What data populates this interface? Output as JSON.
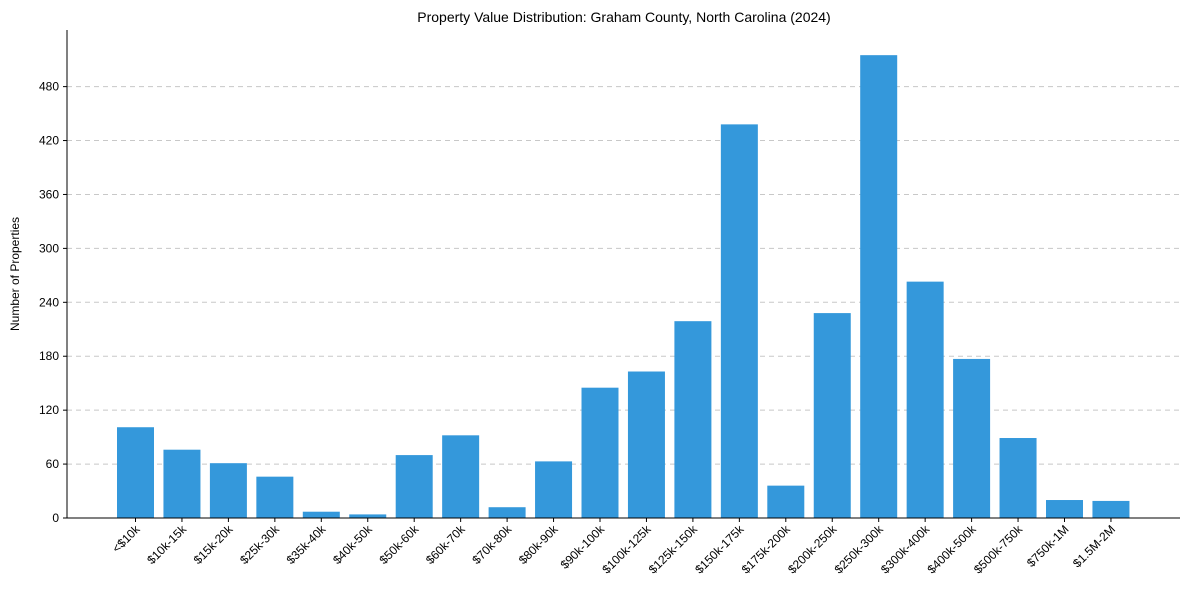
{
  "chart_data": {
    "type": "bar",
    "title": "Property Value Distribution: Graham County, North Carolina (2024)",
    "xlabel": "",
    "ylabel": "Number of Properties",
    "categories": [
      "<$10k",
      "$10k-15k",
      "$15k-20k",
      "$25k-30k",
      "$35k-40k",
      "$40k-50k",
      "$50k-60k",
      "$60k-70k",
      "$70k-80k",
      "$80k-90k",
      "$90k-100k",
      "$100k-125k",
      "$125k-150k",
      "$150k-175k",
      "$175k-200k",
      "$200k-250k",
      "$250k-300k",
      "$300k-400k",
      "$400k-500k",
      "$500k-750k",
      "$750k-1M",
      "$1.5M-2M"
    ],
    "values": [
      101,
      76,
      61,
      46,
      7,
      4,
      70,
      92,
      12,
      63,
      145,
      163,
      219,
      438,
      36,
      228,
      515,
      263,
      177,
      89,
      20,
      19
    ],
    "ylim": [
      0,
      543
    ],
    "yticks": [
      0,
      60,
      120,
      180,
      240,
      300,
      360,
      420,
      480
    ],
    "grid": "y-dashed",
    "color": "#3498db"
  }
}
